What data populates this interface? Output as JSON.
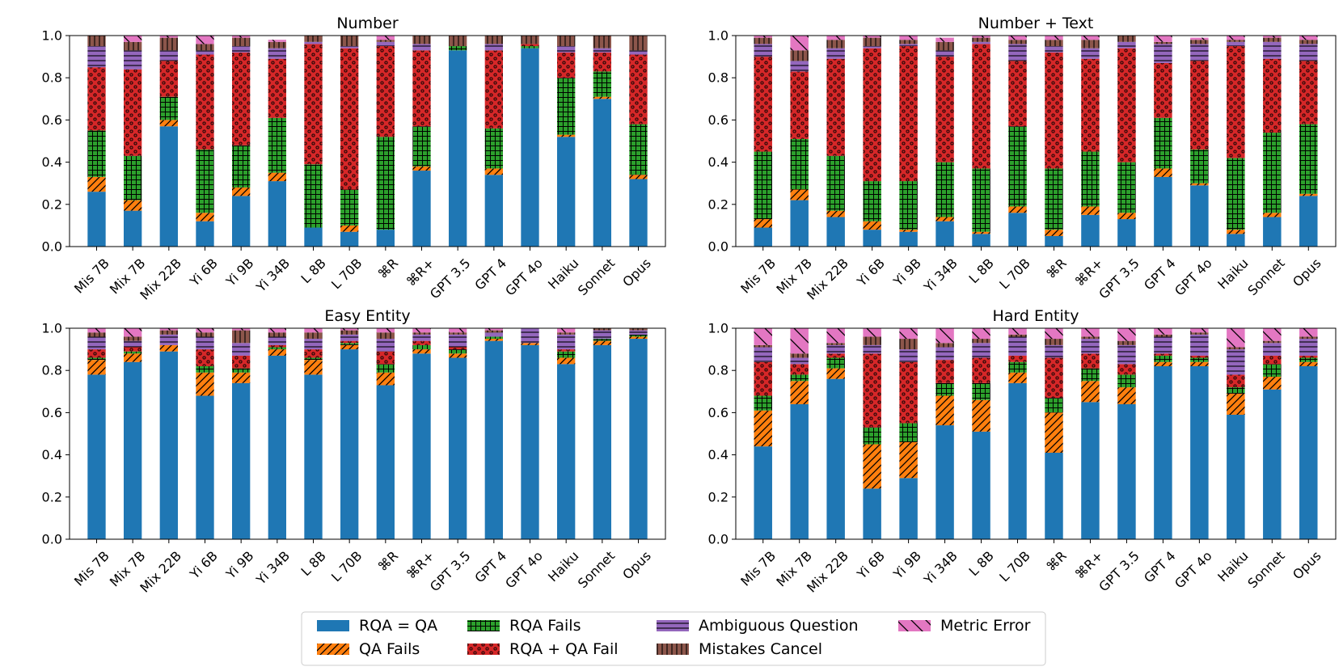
{
  "legend": [
    {
      "key": "rqa_eq_qa",
      "label": "RQA = QA",
      "color": "#1f77b4",
      "pattern": "none"
    },
    {
      "key": "qa_fails",
      "label": "QA Fails",
      "color": "#ff7f0e",
      "pattern": "diag"
    },
    {
      "key": "rqa_fails",
      "label": "RQA Fails",
      "color": "#2ca02c",
      "pattern": "grid"
    },
    {
      "key": "rqa_qa_fail",
      "label": "RQA + QA Fail",
      "color": "#d62728",
      "pattern": "dots"
    },
    {
      "key": "ambiguous",
      "label": "Ambiguous Question",
      "color": "#9467bd",
      "pattern": "hlines"
    },
    {
      "key": "mistakes_cancel",
      "label": "Mistakes Cancel",
      "color": "#8c564b",
      "pattern": "vlines"
    },
    {
      "key": "metric_error",
      "label": "Metric Error",
      "color": "#e377c2",
      "pattern": "backdiag"
    }
  ],
  "chart_data": [
    {
      "type": "bar",
      "stacked": true,
      "title": "Number",
      "ylim": [
        0,
        1
      ],
      "yticks": [
        "0.0",
        "0.2",
        "0.4",
        "0.6",
        "0.8",
        "1.0"
      ],
      "categories": [
        "Mis 7B",
        "Mix 7B",
        "Mix 22B",
        "Yi 6B",
        "Yi 9B",
        "Yi 34B",
        "L 8B",
        "L 70B",
        "⌘R",
        "⌘R+",
        "GPT 3.5",
        "GPT 4",
        "GPT 4o",
        "Haiku",
        "Sonnet",
        "Opus"
      ],
      "series": [
        {
          "name": "RQA = QA",
          "values": [
            0.26,
            0.17,
            0.57,
            0.12,
            0.24,
            0.31,
            0.09,
            0.07,
            0.08,
            0.36,
            0.93,
            0.34,
            0.94,
            0.52,
            0.7,
            0.32
          ]
        },
        {
          "name": "QA Fails",
          "values": [
            0.07,
            0.05,
            0.03,
            0.04,
            0.04,
            0.04,
            0.0,
            0.03,
            0.0,
            0.02,
            0.0,
            0.03,
            0.0,
            0.01,
            0.01,
            0.02
          ]
        },
        {
          "name": "RQA Fails",
          "values": [
            0.22,
            0.21,
            0.11,
            0.3,
            0.2,
            0.26,
            0.3,
            0.17,
            0.44,
            0.19,
            0.02,
            0.19,
            0.01,
            0.27,
            0.12,
            0.24
          ]
        },
        {
          "name": "RQA + QA Fail",
          "values": [
            0.3,
            0.41,
            0.17,
            0.45,
            0.44,
            0.28,
            0.57,
            0.67,
            0.43,
            0.36,
            0.0,
            0.37,
            0.01,
            0.12,
            0.09,
            0.33
          ]
        },
        {
          "name": "Ambiguous Question",
          "values": [
            0.1,
            0.09,
            0.05,
            0.02,
            0.03,
            0.05,
            0.01,
            0.01,
            0.02,
            0.03,
            0.0,
            0.03,
            0.0,
            0.03,
            0.02,
            0.02
          ]
        },
        {
          "name": "Mistakes Cancel",
          "values": [
            0.05,
            0.04,
            0.06,
            0.03,
            0.04,
            0.03,
            0.03,
            0.05,
            0.01,
            0.04,
            0.05,
            0.04,
            0.04,
            0.05,
            0.06,
            0.07
          ]
        },
        {
          "name": "Metric Error",
          "values": [
            0.0,
            0.03,
            0.01,
            0.04,
            0.01,
            0.01,
            0.0,
            0.0,
            0.02,
            0.0,
            0.0,
            0.0,
            0.0,
            0.0,
            0.0,
            0.0
          ]
        }
      ]
    },
    {
      "type": "bar",
      "stacked": true,
      "title": "Number + Text",
      "ylim": [
        0,
        1
      ],
      "yticks": [
        "0.0",
        "0.2",
        "0.4",
        "0.6",
        "0.8",
        "1.0"
      ],
      "categories": [
        "Mis 7B",
        "Mix 7B",
        "Mix 22B",
        "Yi 6B",
        "Yi 9B",
        "Yi 34B",
        "L 8B",
        "L 70B",
        "⌘R",
        "⌘R+",
        "GPT 3.5",
        "GPT 4",
        "GPT 4o",
        "Haiku",
        "Sonnet",
        "Opus"
      ],
      "series": [
        {
          "name": "RQA = QA",
          "values": [
            0.09,
            0.22,
            0.14,
            0.08,
            0.07,
            0.12,
            0.06,
            0.16,
            0.05,
            0.15,
            0.13,
            0.33,
            0.29,
            0.06,
            0.14,
            0.24
          ]
        },
        {
          "name": "QA Fails",
          "values": [
            0.04,
            0.05,
            0.03,
            0.04,
            0.01,
            0.02,
            0.01,
            0.03,
            0.03,
            0.04,
            0.03,
            0.04,
            0.01,
            0.02,
            0.02,
            0.01
          ]
        },
        {
          "name": "RQA Fails",
          "values": [
            0.32,
            0.24,
            0.26,
            0.19,
            0.23,
            0.26,
            0.3,
            0.38,
            0.29,
            0.26,
            0.24,
            0.24,
            0.16,
            0.34,
            0.38,
            0.33
          ]
        },
        {
          "name": "RQA + QA Fail",
          "values": [
            0.45,
            0.32,
            0.46,
            0.63,
            0.64,
            0.5,
            0.59,
            0.31,
            0.55,
            0.44,
            0.54,
            0.26,
            0.42,
            0.53,
            0.35,
            0.3
          ]
        },
        {
          "name": "Ambiguous Question",
          "values": [
            0.06,
            0.05,
            0.05,
            0.01,
            0.01,
            0.03,
            0.01,
            0.08,
            0.03,
            0.05,
            0.03,
            0.09,
            0.08,
            0.02,
            0.08,
            0.08
          ]
        },
        {
          "name": "Mistakes Cancel",
          "values": [
            0.03,
            0.05,
            0.04,
            0.04,
            0.02,
            0.04,
            0.02,
            0.02,
            0.03,
            0.04,
            0.03,
            0.01,
            0.02,
            0.01,
            0.02,
            0.02
          ]
        },
        {
          "name": "Metric Error",
          "values": [
            0.01,
            0.07,
            0.02,
            0.01,
            0.02,
            0.02,
            0.01,
            0.02,
            0.02,
            0.02,
            0.0,
            0.03,
            0.01,
            0.02,
            0.01,
            0.02
          ]
        }
      ]
    },
    {
      "type": "bar",
      "stacked": true,
      "title": "Easy Entity",
      "ylim": [
        0,
        1
      ],
      "yticks": [
        "0.0",
        "0.2",
        "0.4",
        "0.6",
        "0.8",
        "1.0"
      ],
      "categories": [
        "Mis 7B",
        "Mix 7B",
        "Mix 22B",
        "Yi 6B",
        "Yi 9B",
        "Yi 34B",
        "L 8B",
        "L 70B",
        "⌘R",
        "⌘R+",
        "GPT 3.5",
        "GPT 4",
        "GPT 4o",
        "Haiku",
        "Sonnet",
        "Opus"
      ],
      "series": [
        {
          "name": "RQA = QA",
          "values": [
            0.78,
            0.84,
            0.89,
            0.68,
            0.74,
            0.87,
            0.78,
            0.9,
            0.73,
            0.88,
            0.86,
            0.94,
            0.92,
            0.83,
            0.92,
            0.95
          ]
        },
        {
          "name": "QA Fails",
          "values": [
            0.07,
            0.04,
            0.03,
            0.11,
            0.05,
            0.03,
            0.07,
            0.02,
            0.06,
            0.02,
            0.02,
            0.01,
            0.01,
            0.03,
            0.02,
            0.01
          ]
        },
        {
          "name": "RQA Fails",
          "values": [
            0.01,
            0.01,
            0.0,
            0.03,
            0.02,
            0.01,
            0.01,
            0.01,
            0.04,
            0.02,
            0.02,
            0.01,
            0.0,
            0.03,
            0.01,
            0.01
          ]
        },
        {
          "name": "RQA + QA Fail",
          "values": [
            0.04,
            0.02,
            0.0,
            0.08,
            0.06,
            0.01,
            0.04,
            0.01,
            0.06,
            0.02,
            0.01,
            0.0,
            0.0,
            0.01,
            0.0,
            0.0
          ]
        },
        {
          "name": "Ambiguous Question",
          "values": [
            0.06,
            0.03,
            0.05,
            0.06,
            0.06,
            0.04,
            0.05,
            0.03,
            0.06,
            0.03,
            0.06,
            0.02,
            0.07,
            0.07,
            0.04,
            0.02
          ]
        },
        {
          "name": "Mistakes Cancel",
          "values": [
            0.02,
            0.02,
            0.02,
            0.02,
            0.06,
            0.02,
            0.03,
            0.02,
            0.03,
            0.01,
            0.01,
            0.01,
            0.0,
            0.01,
            0.01,
            0.01
          ]
        },
        {
          "name": "Metric Error",
          "values": [
            0.02,
            0.04,
            0.01,
            0.02,
            0.01,
            0.02,
            0.02,
            0.01,
            0.02,
            0.02,
            0.02,
            0.01,
            0.0,
            0.02,
            0.0,
            0.0
          ]
        }
      ]
    },
    {
      "type": "bar",
      "stacked": true,
      "title": "Hard Entity",
      "ylim": [
        0,
        1
      ],
      "yticks": [
        "0.0",
        "0.2",
        "0.4",
        "0.6",
        "0.8",
        "1.0"
      ],
      "categories": [
        "Mis 7B",
        "Mix 7B",
        "Mix 22B",
        "Yi 6B",
        "Yi 9B",
        "Yi 34B",
        "L 8B",
        "L 70B",
        "⌘R",
        "⌘R+",
        "GPT 3.5",
        "GPT 4",
        "GPT 4o",
        "Haiku",
        "Sonnet",
        "Opus"
      ],
      "series": [
        {
          "name": "RQA = QA",
          "values": [
            0.44,
            0.64,
            0.76,
            0.24,
            0.29,
            0.54,
            0.51,
            0.74,
            0.41,
            0.65,
            0.64,
            0.82,
            0.82,
            0.59,
            0.71,
            0.82
          ]
        },
        {
          "name": "QA Fails",
          "values": [
            0.17,
            0.11,
            0.05,
            0.21,
            0.17,
            0.14,
            0.15,
            0.05,
            0.19,
            0.1,
            0.08,
            0.02,
            0.02,
            0.1,
            0.06,
            0.02
          ]
        },
        {
          "name": "RQA Fails",
          "values": [
            0.07,
            0.03,
            0.05,
            0.08,
            0.09,
            0.06,
            0.08,
            0.05,
            0.07,
            0.06,
            0.06,
            0.03,
            0.02,
            0.03,
            0.06,
            0.02
          ]
        },
        {
          "name": "RQA + QA Fail",
          "values": [
            0.16,
            0.05,
            0.02,
            0.35,
            0.29,
            0.11,
            0.12,
            0.03,
            0.19,
            0.07,
            0.05,
            0.01,
            0.01,
            0.06,
            0.04,
            0.01
          ]
        },
        {
          "name": "Ambiguous Question",
          "values": [
            0.07,
            0.03,
            0.04,
            0.04,
            0.06,
            0.06,
            0.07,
            0.09,
            0.06,
            0.07,
            0.09,
            0.08,
            0.1,
            0.12,
            0.06,
            0.08
          ]
        },
        {
          "name": "Mistakes Cancel",
          "values": [
            0.01,
            0.02,
            0.01,
            0.04,
            0.05,
            0.02,
            0.02,
            0.01,
            0.03,
            0.01,
            0.02,
            0.01,
            0.01,
            0.01,
            0.01,
            0.01
          ]
        },
        {
          "name": "Metric Error",
          "values": [
            0.08,
            0.12,
            0.07,
            0.04,
            0.05,
            0.07,
            0.05,
            0.03,
            0.05,
            0.04,
            0.06,
            0.03,
            0.02,
            0.09,
            0.06,
            0.04
          ]
        }
      ]
    }
  ]
}
